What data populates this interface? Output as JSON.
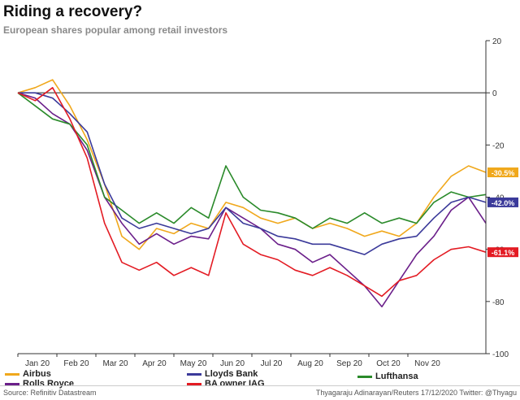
{
  "header": {
    "title": "Riding a recovery?",
    "subtitle": "European shares popular among retail investors"
  },
  "footer": {
    "source": "Source: Refinitiv Datastream",
    "credit": "Thyagaraju Adinarayan/Reuters 17/12/2020 Twitter: @Thyagu"
  },
  "chart_data": {
    "type": "line",
    "title": "Riding a recovery?",
    "subtitle": "European shares popular among retail investors",
    "xlabel": "",
    "ylabel": "",
    "ylim": [
      -100,
      20
    ],
    "y_ticks": [
      20,
      0,
      -20,
      -40,
      -60,
      -80,
      -100
    ],
    "x_ticks": [
      "Jan 20",
      "Feb 20",
      "Mar 20",
      "Apr 20",
      "May 20",
      "Jun 20",
      "Jul 20",
      "Aug 20",
      "Sep 20",
      "Oct 20",
      "Nov 20"
    ],
    "x": [
      "Jan 1",
      "Jan 15",
      "Feb 1",
      "Feb 15",
      "Mar 1",
      "Mar 8",
      "Mar 15",
      "Mar 22",
      "Apr 1",
      "Apr 15",
      "May 1",
      "May 15",
      "Jun 1",
      "Jun 8",
      "Jun 15",
      "Jul 1",
      "Jul 15",
      "Aug 1",
      "Aug 15",
      "Sep 1",
      "Sep 15",
      "Oct 1",
      "Oct 15",
      "Nov 1",
      "Nov 8",
      "Nov 15",
      "Dec 1",
      "Dec 15"
    ],
    "series": [
      {
        "name": "Airbus",
        "color": "#f0a81c",
        "end_label": "-30.5%",
        "values": [
          0,
          2,
          5,
          -5,
          -18,
          -35,
          -55,
          -60,
          -52,
          -54,
          -50,
          -52,
          -42,
          -44,
          -48,
          -50,
          -48,
          -52,
          -50,
          -52,
          -55,
          -53,
          -55,
          -50,
          -40,
          -32,
          -28,
          -30.5
        ]
      },
      {
        "name": "Rolls Royce",
        "color": "#6b1f8a",
        "end_label": "",
        "values": [
          0,
          -2,
          -8,
          -12,
          -22,
          -40,
          -50,
          -58,
          -54,
          -58,
          -55,
          -56,
          -44,
          -48,
          -52,
          -58,
          -60,
          -65,
          -62,
          -68,
          -74,
          -82,
          -72,
          -62,
          -55,
          -45,
          -40,
          -50
        ]
      },
      {
        "name": "Lufthansa",
        "color": "#2a8a2a",
        "end_label": "",
        "values": [
          0,
          -5,
          -10,
          -12,
          -20,
          -40,
          -45,
          -50,
          -46,
          -50,
          -44,
          -48,
          -28,
          -40,
          -45,
          -46,
          -48,
          -52,
          -48,
          -50,
          -46,
          -50,
          -48,
          -50,
          -42,
          -38,
          -40,
          -39
        ]
      },
      {
        "name": "Lloyds Bank",
        "color": "#3b3a9a",
        "end_label": "-42.0%",
        "values": [
          0,
          0,
          -2,
          -8,
          -15,
          -35,
          -48,
          -52,
          -50,
          -52,
          -54,
          -52,
          -44,
          -50,
          -52,
          -55,
          -56,
          -58,
          -58,
          -60,
          -62,
          -58,
          -56,
          -55,
          -48,
          -42,
          -40,
          -42
        ]
      },
      {
        "name": "BA owner IAG",
        "color": "#e31b23",
        "end_label": "-61.1%",
        "values": [
          0,
          -3,
          2,
          -10,
          -25,
          -50,
          -65,
          -68,
          -65,
          -70,
          -67,
          -70,
          -46,
          -58,
          -62,
          -64,
          -68,
          -70,
          -67,
          -70,
          -74,
          -78,
          -72,
          -70,
          -64,
          -60,
          -59,
          -61.1
        ]
      }
    ],
    "reference_line": 0,
    "legend": [
      "Airbus",
      "Lloyds Bank",
      "Lufthansa",
      "Rolls Royce",
      "BA owner IAG"
    ],
    "legend_placement": "bottom"
  }
}
